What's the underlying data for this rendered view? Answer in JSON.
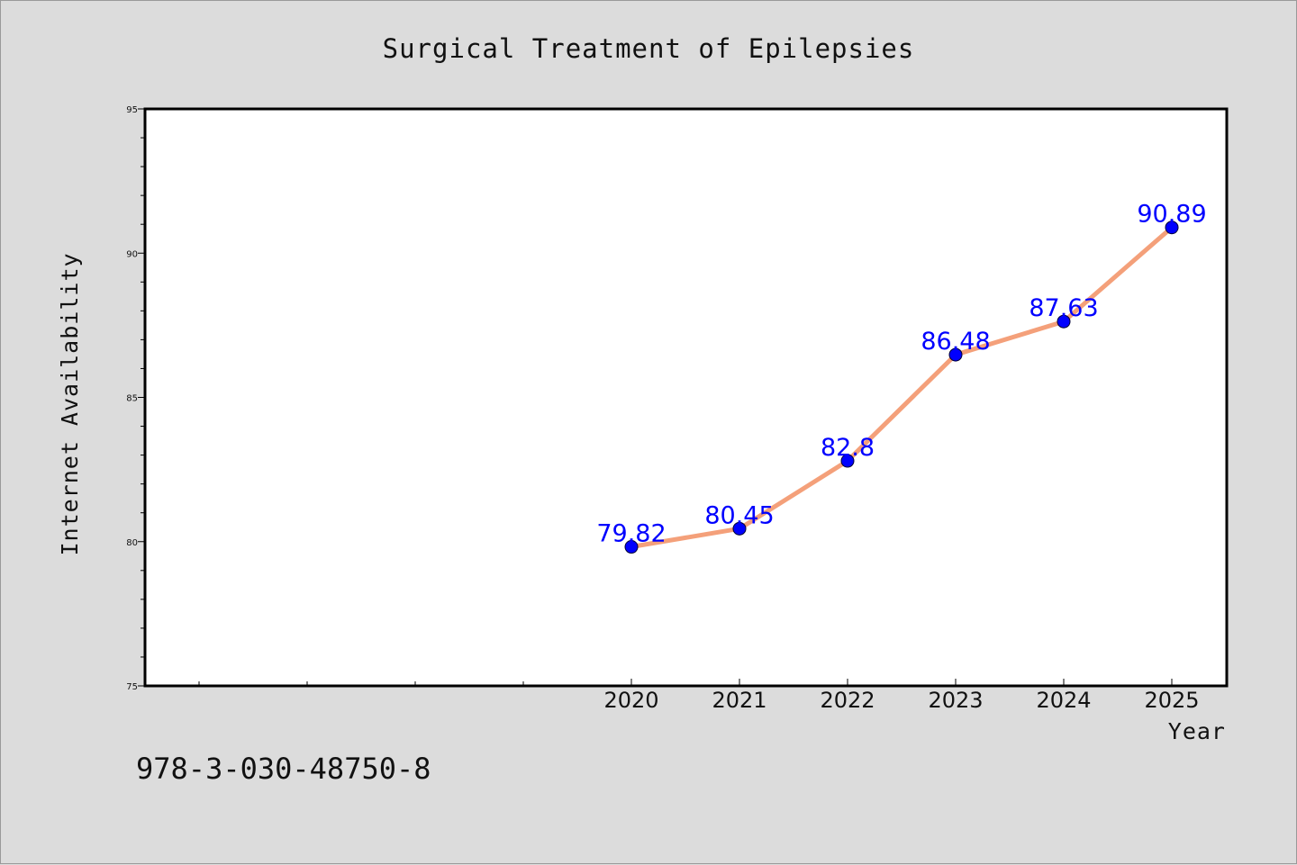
{
  "chart_data": {
    "type": "line",
    "title": "Surgical Treatment of Epilepsies",
    "xlabel": "Year",
    "ylabel": "Internet Availability",
    "x": [
      "2020",
      "2021",
      "2022",
      "2023",
      "2024",
      "2025"
    ],
    "series": [
      {
        "values": [
          79.82,
          80.45,
          82.8,
          86.48,
          87.63,
          90.89
        ],
        "data_labels": [
          "79.82",
          "80.45",
          "82.8",
          "86.48",
          "87.63",
          "90.89"
        ],
        "line_color": "#f4a07a",
        "marker_color": "#0000ff"
      }
    ],
    "ylim": [
      75,
      95
    ],
    "yticks": [
      "75",
      "80",
      "85",
      "90",
      "95"
    ],
    "grid": false,
    "legend": "none"
  },
  "footer": {
    "isbn": "978-3-030-48750-8"
  },
  "colors": {
    "background": "#dcdcdc",
    "plot_area": "#ffffff",
    "line": "#f4a07a",
    "marker": "#0000ff",
    "data_label": "#0000ff"
  }
}
